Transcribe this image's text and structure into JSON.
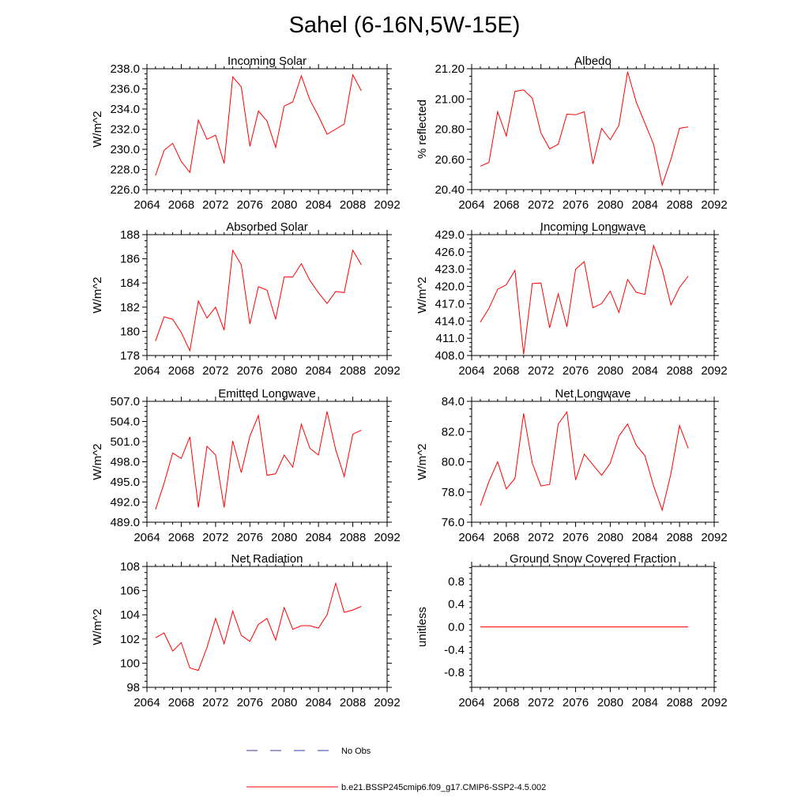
{
  "title": "Sahel (6-16N,5W-15E)",
  "legend": [
    {
      "label": "No Obs",
      "style": "dashed",
      "color": "#3a3aa8"
    },
    {
      "label": "b.e21.BSSP245cmip6.f09_g17.CMIP6-SSP2-4.5.002",
      "style": "solid",
      "color": "#ff0000"
    }
  ],
  "chart_data": [
    {
      "type": "line",
      "title": "Incoming Solar",
      "ylabel": "W/m^2",
      "xlim": [
        2064,
        2092
      ],
      "xticks": [
        "2064",
        "2068",
        "2072",
        "2076",
        "2080",
        "2084",
        "2088",
        "2092"
      ],
      "ylim": [
        226,
        238
      ],
      "yticks": [
        "226.0",
        "228.0",
        "230.0",
        "232.0",
        "234.0",
        "236.0",
        "238.0"
      ],
      "ytick_values": [
        226,
        228,
        230,
        232,
        234,
        236,
        238
      ],
      "x": [
        2065,
        2066,
        2067,
        2068,
        2069,
        2070,
        2071,
        2072,
        2073,
        2074,
        2075,
        2076,
        2077,
        2078,
        2079,
        2080,
        2081,
        2082,
        2083,
        2084,
        2085,
        2086,
        2087,
        2088,
        2089
      ],
      "values": [
        227.4,
        229.9,
        230.6,
        228.8,
        227.7,
        232.9,
        231.0,
        231.4,
        228.6,
        237.2,
        236.2,
        230.3,
        233.8,
        232.8,
        230.2,
        234.3,
        234.7,
        237.3,
        234.9,
        233.3,
        231.5,
        232.0,
        232.5,
        237.4,
        235.8
      ],
      "color": "#ff0000"
    },
    {
      "type": "line",
      "title": "Albedo",
      "ylabel": "% reflected",
      "xlim": [
        2064,
        2092
      ],
      "xticks": [
        "2064",
        "2068",
        "2072",
        "2076",
        "2080",
        "2084",
        "2088",
        "2092"
      ],
      "ylim": [
        20.4,
        21.2
      ],
      "yticks": [
        "20.40",
        "20.60",
        "20.80",
        "21.00",
        "21.20"
      ],
      "ytick_values": [
        20.4,
        20.6,
        20.8,
        21.0,
        21.2
      ],
      "x": [
        2065,
        2066,
        2067,
        2068,
        2069,
        2070,
        2071,
        2072,
        2073,
        2074,
        2075,
        2076,
        2077,
        2078,
        2079,
        2080,
        2081,
        2082,
        2083,
        2084,
        2085,
        2086,
        2087,
        2088,
        2089
      ],
      "values": [
        20.555,
        20.58,
        20.915,
        20.755,
        21.05,
        21.06,
        21.005,
        20.775,
        20.67,
        20.7,
        20.9,
        20.895,
        20.915,
        20.57,
        20.805,
        20.73,
        20.825,
        21.18,
        20.98,
        20.84,
        20.7,
        20.43,
        20.6,
        20.805,
        20.815
      ],
      "color": "#ff0000"
    },
    {
      "type": "line",
      "title": "Absorbed Solar",
      "ylabel": "W/m^2",
      "xlim": [
        2064,
        2092
      ],
      "xticks": [
        "2064",
        "2068",
        "2072",
        "2076",
        "2080",
        "2084",
        "2088",
        "2092"
      ],
      "ylim": [
        178,
        188
      ],
      "yticks": [
        "178",
        "180",
        "182",
        "184",
        "186",
        "188"
      ],
      "ytick_values": [
        178,
        180,
        182,
        184,
        186,
        188
      ],
      "x": [
        2065,
        2066,
        2067,
        2068,
        2069,
        2070,
        2071,
        2072,
        2073,
        2074,
        2075,
        2076,
        2077,
        2078,
        2079,
        2080,
        2081,
        2082,
        2083,
        2084,
        2085,
        2086,
        2087,
        2088,
        2089
      ],
      "values": [
        179.2,
        181.2,
        181.0,
        179.9,
        178.4,
        182.5,
        181.1,
        182.0,
        180.1,
        186.7,
        185.5,
        180.6,
        183.7,
        183.4,
        181.0,
        184.5,
        184.5,
        185.6,
        184.2,
        183.2,
        182.3,
        183.3,
        183.2,
        186.7,
        185.5
      ],
      "color": "#ff0000"
    },
    {
      "type": "line",
      "title": "Incoming Longwave",
      "ylabel": "W/m^2",
      "xlim": [
        2064,
        2092
      ],
      "xticks": [
        "2064",
        "2068",
        "2072",
        "2076",
        "2080",
        "2084",
        "2088",
        "2092"
      ],
      "ylim": [
        408,
        429
      ],
      "yticks": [
        "408.0",
        "411.0",
        "414.0",
        "417.0",
        "420.0",
        "423.0",
        "426.0",
        "429.0"
      ],
      "ytick_values": [
        408,
        411,
        414,
        417,
        420,
        423,
        426,
        429
      ],
      "x": [
        2065,
        2066,
        2067,
        2068,
        2069,
        2070,
        2071,
        2072,
        2073,
        2074,
        2075,
        2076,
        2077,
        2078,
        2079,
        2080,
        2081,
        2082,
        2083,
        2084,
        2085,
        2086,
        2087,
        2088,
        2089
      ],
      "values": [
        413.8,
        416.2,
        419.5,
        420.3,
        422.8,
        408.2,
        420.5,
        420.6,
        412.8,
        418.7,
        413.0,
        423.0,
        424.3,
        416.3,
        417.0,
        419.2,
        415.5,
        421.2,
        419.0,
        418.6,
        427.1,
        423.0,
        416.8,
        419.8,
        421.8
      ],
      "color": "#ff0000"
    },
    {
      "type": "line",
      "title": "Emitted Longwave",
      "ylabel": "W/m^2",
      "xlim": [
        2064,
        2092
      ],
      "xticks": [
        "2064",
        "2068",
        "2072",
        "2076",
        "2080",
        "2084",
        "2088",
        "2092"
      ],
      "ylim": [
        489,
        507
      ],
      "yticks": [
        "489.0",
        "492.0",
        "495.0",
        "498.0",
        "501.0",
        "504.0",
        "507.0"
      ],
      "ytick_values": [
        489,
        492,
        495,
        498,
        501,
        504,
        507
      ],
      "x": [
        2065,
        2066,
        2067,
        2068,
        2069,
        2070,
        2071,
        2072,
        2073,
        2074,
        2075,
        2076,
        2077,
        2078,
        2079,
        2080,
        2081,
        2082,
        2083,
        2084,
        2085,
        2086,
        2087,
        2088,
        2089
      ],
      "values": [
        490.9,
        494.8,
        499.3,
        498.5,
        501.7,
        491.2,
        500.3,
        499.0,
        491.2,
        501.1,
        496.4,
        501.8,
        504.9,
        496.0,
        496.2,
        499.0,
        497.2,
        503.6,
        500.0,
        499.0,
        505.5,
        499.8,
        495.8,
        502.1,
        502.7
      ],
      "color": "#ff0000"
    },
    {
      "type": "line",
      "title": "Net Longwave",
      "ylabel": "W/m^2",
      "xlim": [
        2064,
        2092
      ],
      "xticks": [
        "2064",
        "2068",
        "2072",
        "2076",
        "2080",
        "2084",
        "2088",
        "2092"
      ],
      "ylim": [
        76,
        84
      ],
      "yticks": [
        "76.0",
        "78.0",
        "80.0",
        "82.0",
        "84.0"
      ],
      "ytick_values": [
        76,
        78,
        80,
        82,
        84
      ],
      "x": [
        2065,
        2066,
        2067,
        2068,
        2069,
        2070,
        2071,
        2072,
        2073,
        2074,
        2075,
        2076,
        2077,
        2078,
        2079,
        2080,
        2081,
        2082,
        2083,
        2084,
        2085,
        2086,
        2087,
        2088,
        2089
      ],
      "values": [
        77.1,
        78.7,
        80.0,
        78.2,
        78.9,
        83.2,
        79.9,
        78.4,
        78.5,
        82.5,
        83.3,
        78.8,
        80.5,
        79.8,
        79.1,
        79.9,
        81.7,
        82.5,
        81.1,
        80.4,
        78.4,
        76.8,
        79.2,
        82.4,
        80.9
      ],
      "color": "#ff0000"
    },
    {
      "type": "line",
      "title": "Net Radiation",
      "ylabel": "W/m^2",
      "xlim": [
        2064,
        2092
      ],
      "xticks": [
        "2064",
        "2068",
        "2072",
        "2076",
        "2080",
        "2084",
        "2088",
        "2092"
      ],
      "ylim": [
        98,
        108
      ],
      "yticks": [
        "98",
        "100",
        "102",
        "104",
        "106",
        "108"
      ],
      "ytick_values": [
        98,
        100,
        102,
        104,
        106,
        108
      ],
      "x": [
        2065,
        2066,
        2067,
        2068,
        2069,
        2070,
        2071,
        2072,
        2073,
        2074,
        2075,
        2076,
        2077,
        2078,
        2079,
        2080,
        2081,
        2082,
        2083,
        2084,
        2085,
        2086,
        2087,
        2088,
        2089
      ],
      "values": [
        102.1,
        102.5,
        101.0,
        101.7,
        99.6,
        99.4,
        101.3,
        103.7,
        101.6,
        104.3,
        102.3,
        101.8,
        103.2,
        103.7,
        101.9,
        104.6,
        102.8,
        103.1,
        103.1,
        102.9,
        104.0,
        106.6,
        104.2,
        104.4,
        104.7
      ],
      "color": "#ff0000"
    },
    {
      "type": "line",
      "title": "Ground Snow Covered Fraction",
      "ylabel": "unitless",
      "xlim": [
        2064,
        2092
      ],
      "xticks": [
        "2064",
        "2068",
        "2072",
        "2076",
        "2080",
        "2084",
        "2088",
        "2092"
      ],
      "ylim": [
        -1.06,
        1.06
      ],
      "yticks": [
        "-0.8",
        "-0.4",
        "0.0",
        "0.4",
        "0.8"
      ],
      "ytick_values": [
        -0.8,
        -0.4,
        0.0,
        0.4,
        0.8
      ],
      "x": [
        2065,
        2066,
        2067,
        2068,
        2069,
        2070,
        2071,
        2072,
        2073,
        2074,
        2075,
        2076,
        2077,
        2078,
        2079,
        2080,
        2081,
        2082,
        2083,
        2084,
        2085,
        2086,
        2087,
        2088,
        2089
      ],
      "values": [
        0,
        0,
        0,
        0,
        0,
        0,
        0,
        0,
        0,
        0,
        0,
        0,
        0,
        0,
        0,
        0,
        0,
        0,
        0,
        0,
        0,
        0,
        0,
        0,
        0
      ],
      "color": "#ff0000"
    }
  ]
}
